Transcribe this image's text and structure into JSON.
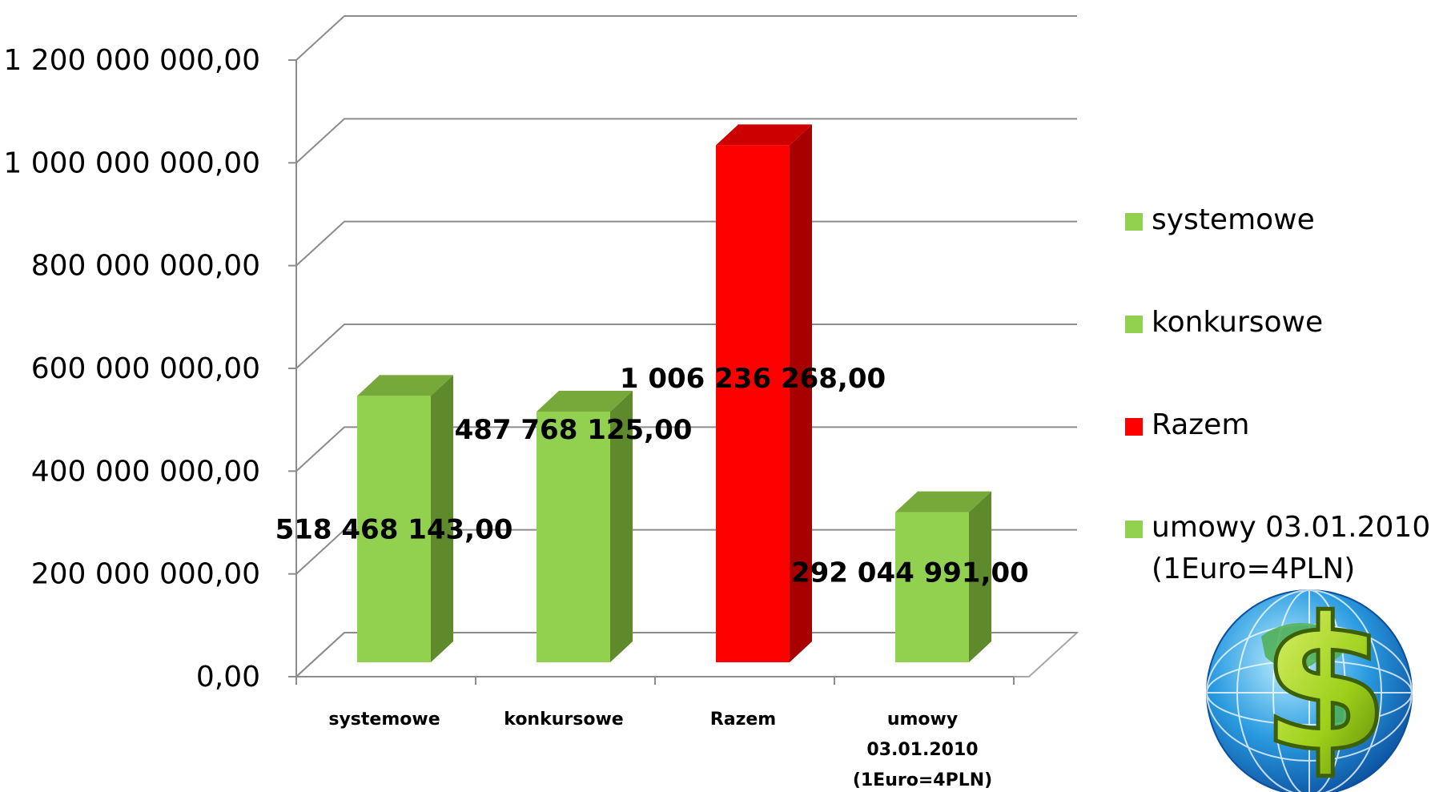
{
  "chart_data": {
    "type": "bar",
    "categories": [
      [
        "systemowe"
      ],
      [
        "konkursowe"
      ],
      [
        "Razem"
      ],
      [
        "umowy",
        "03.01.2010",
        "(1Euro=4PLN)"
      ]
    ],
    "values": [
      518468143,
      487768125,
      1006236268,
      292044991
    ],
    "value_labels": [
      "518 468 143,00",
      "487 768 125,00",
      "1 006 236 268,00",
      "292 044 991,00"
    ],
    "y_ticks": [
      {
        "value": 0,
        "label": "0,00"
      },
      {
        "value": 200000000,
        "label": "200 000 000,00"
      },
      {
        "value": 400000000,
        "label": "400 000 000,00"
      },
      {
        "value": 600000000,
        "label": "600 000 000,00"
      },
      {
        "value": 800000000,
        "label": "800 000 000,00"
      },
      {
        "value": 1000000000,
        "label": "1 000 000 000,00"
      },
      {
        "value": 1200000000,
        "label": "1 200 000 000,00"
      }
    ],
    "ylim": [
      0,
      1200000000
    ],
    "grid": true,
    "style": "3d-column",
    "legend": {
      "placement": "right",
      "entries": [
        {
          "lines": [
            "systemowe"
          ],
          "color": "#92d050"
        },
        {
          "lines": [
            "konkursowe"
          ],
          "color": "#92d050"
        },
        {
          "lines": [
            "Razem"
          ],
          "color": "#ff0000"
        },
        {
          "lines": [
            "umowy 03.01.2010",
            "(1Euro=4PLN)"
          ],
          "color": "#92d050"
        }
      ]
    },
    "bar_colors": [
      {
        "front": "#92d050",
        "side": "#5e8a2c",
        "top": "#76a83a"
      },
      {
        "front": "#92d050",
        "side": "#5e8a2c",
        "top": "#76a83a"
      },
      {
        "front": "#ff0000",
        "side": "#a80000",
        "top": "#cc0000"
      },
      {
        "front": "#92d050",
        "side": "#5e8a2c",
        "top": "#76a83a"
      }
    ]
  },
  "decoration": {
    "icon": "globe-dollar-icon"
  }
}
